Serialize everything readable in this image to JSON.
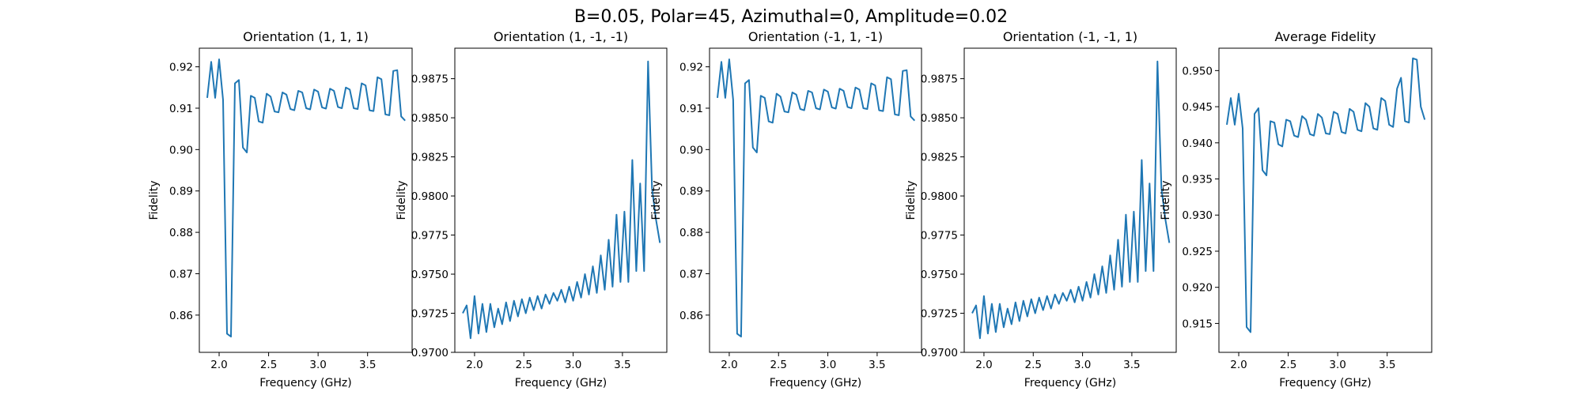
{
  "figure": {
    "title": "B=0.05, Polar=45, Azimuthal=0, Amplitude=0.02"
  },
  "chart_data": [
    {
      "type": "line",
      "title": "Orientation (1, 1, 1)",
      "xlabel": "Frequency (GHz)",
      "ylabel": "Fidelity",
      "xlim": [
        1.8,
        3.95
      ],
      "ylim": [
        0.851,
        0.9245
      ],
      "xticks": [
        2.0,
        2.5,
        3.0,
        3.5
      ],
      "yticks": [
        0.86,
        0.87,
        0.88,
        0.89,
        0.9,
        0.91,
        0.92
      ],
      "xtick_labels": [
        "2.0",
        "2.5",
        "3.0",
        "3.5"
      ],
      "ytick_labels": [
        "0.86",
        "0.87",
        "0.88",
        "0.89",
        "0.90",
        "0.91",
        "0.92"
      ],
      "color": "#1f77b4",
      "series": [
        {
          "x": [
            1.88,
            1.92,
            1.96,
            2.0,
            2.04,
            2.08,
            2.12,
            2.16,
            2.2,
            2.24,
            2.28,
            2.32,
            2.36,
            2.4,
            2.44,
            2.48,
            2.52,
            2.56,
            2.6,
            2.64,
            2.68,
            2.72,
            2.76,
            2.8,
            2.84,
            2.88,
            2.92,
            2.96,
            3.0,
            3.04,
            3.08,
            3.12,
            3.16,
            3.2,
            3.24,
            3.28,
            3.32,
            3.36,
            3.4,
            3.44,
            3.48,
            3.52,
            3.56,
            3.6,
            3.64,
            3.68,
            3.72,
            3.76,
            3.8,
            3.84,
            3.88
          ],
          "values": [
            0.9125,
            0.9212,
            0.9125,
            0.9218,
            0.912,
            0.8555,
            0.8548,
            0.916,
            0.9168,
            0.9005,
            0.8993,
            0.913,
            0.9125,
            0.9068,
            0.9065,
            0.9135,
            0.9128,
            0.9092,
            0.909,
            0.9138,
            0.9133,
            0.9098,
            0.9095,
            0.9142,
            0.9138,
            0.91,
            0.9097,
            0.9145,
            0.914,
            0.9102,
            0.9099,
            0.9147,
            0.9142,
            0.9103,
            0.91,
            0.915,
            0.9145,
            0.91,
            0.9098,
            0.916,
            0.9155,
            0.9095,
            0.9093,
            0.9175,
            0.917,
            0.9085,
            0.9083,
            0.919,
            0.9192,
            0.908,
            0.907
          ]
        }
      ]
    },
    {
      "type": "line",
      "title": "Orientation (1, -1, -1)",
      "xlabel": "Frequency (GHz)",
      "ylabel": "Fidelity",
      "xlim": [
        1.8,
        3.95
      ],
      "ylim": [
        0.97,
        0.98945
      ],
      "xticks": [
        2.0,
        2.5,
        3.0,
        3.5
      ],
      "yticks": [
        0.97,
        0.9725,
        0.975,
        0.9775,
        0.98,
        0.9825,
        0.985,
        0.9875
      ],
      "xtick_labels": [
        "2.0",
        "2.5",
        "3.0",
        "3.5"
      ],
      "ytick_labels": [
        "0.9700",
        "0.9725",
        "0.9750",
        "0.9775",
        "0.9800",
        "0.9825",
        "0.9850",
        "0.9875"
      ],
      "color": "#1f77b4",
      "series": [
        {
          "x": [
            1.88,
            1.92,
            1.96,
            2.0,
            2.04,
            2.08,
            2.12,
            2.16,
            2.2,
            2.24,
            2.28,
            2.32,
            2.36,
            2.4,
            2.44,
            2.48,
            2.52,
            2.56,
            2.6,
            2.64,
            2.68,
            2.72,
            2.76,
            2.8,
            2.84,
            2.88,
            2.92,
            2.96,
            3.0,
            3.04,
            3.08,
            3.12,
            3.16,
            3.2,
            3.24,
            3.28,
            3.32,
            3.36,
            3.4,
            3.44,
            3.48,
            3.52,
            3.56,
            3.6,
            3.64,
            3.68,
            3.72,
            3.76,
            3.8,
            3.84,
            3.88
          ],
          "values": [
            0.9725,
            0.973,
            0.9709,
            0.9736,
            0.9712,
            0.9731,
            0.9713,
            0.9731,
            0.9716,
            0.9728,
            0.9718,
            0.9732,
            0.972,
            0.9733,
            0.9723,
            0.9734,
            0.9725,
            0.9735,
            0.9727,
            0.9736,
            0.9728,
            0.9737,
            0.9731,
            0.9738,
            0.9733,
            0.974,
            0.9732,
            0.9742,
            0.9733,
            0.9745,
            0.9735,
            0.975,
            0.9737,
            0.9755,
            0.9738,
            0.9762,
            0.974,
            0.9772,
            0.9742,
            0.9788,
            0.9745,
            0.979,
            0.9745,
            0.9823,
            0.9752,
            0.9808,
            0.9752,
            0.9886,
            0.9805,
            0.9785,
            0.977
          ]
        }
      ]
    },
    {
      "type": "line",
      "title": "Orientation (-1, 1, -1)",
      "xlabel": "Frequency (GHz)",
      "ylabel": "Fidelity",
      "xlim": [
        1.8,
        3.95
      ],
      "ylim": [
        0.851,
        0.9245
      ],
      "xticks": [
        2.0,
        2.5,
        3.0,
        3.5
      ],
      "yticks": [
        0.86,
        0.87,
        0.88,
        0.89,
        0.9,
        0.91,
        0.92
      ],
      "xtick_labels": [
        "2.0",
        "2.5",
        "3.0",
        "3.5"
      ],
      "ytick_labels": [
        "0.86",
        "0.87",
        "0.88",
        "0.89",
        "0.90",
        "0.91",
        "0.92"
      ],
      "color": "#1f77b4",
      "series": [
        {
          "x": [
            1.88,
            1.92,
            1.96,
            2.0,
            2.04,
            2.08,
            2.12,
            2.16,
            2.2,
            2.24,
            2.28,
            2.32,
            2.36,
            2.4,
            2.44,
            2.48,
            2.52,
            2.56,
            2.6,
            2.64,
            2.68,
            2.72,
            2.76,
            2.8,
            2.84,
            2.88,
            2.92,
            2.96,
            3.0,
            3.04,
            3.08,
            3.12,
            3.16,
            3.2,
            3.24,
            3.28,
            3.32,
            3.36,
            3.4,
            3.44,
            3.48,
            3.52,
            3.56,
            3.6,
            3.64,
            3.68,
            3.72,
            3.76,
            3.8,
            3.84,
            3.88
          ],
          "values": [
            0.9125,
            0.9212,
            0.9125,
            0.9218,
            0.912,
            0.8555,
            0.8548,
            0.916,
            0.9168,
            0.9005,
            0.8993,
            0.913,
            0.9125,
            0.9068,
            0.9065,
            0.9135,
            0.9128,
            0.9092,
            0.909,
            0.9138,
            0.9133,
            0.9098,
            0.9095,
            0.9142,
            0.9138,
            0.91,
            0.9097,
            0.9145,
            0.914,
            0.9102,
            0.9099,
            0.9147,
            0.9142,
            0.9103,
            0.91,
            0.915,
            0.9145,
            0.91,
            0.9098,
            0.916,
            0.9155,
            0.9095,
            0.9093,
            0.9175,
            0.917,
            0.9085,
            0.9083,
            0.919,
            0.9192,
            0.908,
            0.907
          ]
        }
      ]
    },
    {
      "type": "line",
      "title": "Orientation (-1, -1, 1)",
      "xlabel": "Frequency (GHz)",
      "ylabel": "Fidelity",
      "xlim": [
        1.8,
        3.95
      ],
      "ylim": [
        0.97,
        0.98945
      ],
      "xticks": [
        2.0,
        2.5,
        3.0,
        3.5
      ],
      "yticks": [
        0.97,
        0.9725,
        0.975,
        0.9775,
        0.98,
        0.9825,
        0.985,
        0.9875
      ],
      "xtick_labels": [
        "2.0",
        "2.5",
        "3.0",
        "3.5"
      ],
      "ytick_labels": [
        "0.9700",
        "0.9725",
        "0.9750",
        "0.9775",
        "0.9800",
        "0.9825",
        "0.9850",
        "0.9875"
      ],
      "color": "#1f77b4",
      "series": [
        {
          "x": [
            1.88,
            1.92,
            1.96,
            2.0,
            2.04,
            2.08,
            2.12,
            2.16,
            2.2,
            2.24,
            2.28,
            2.32,
            2.36,
            2.4,
            2.44,
            2.48,
            2.52,
            2.56,
            2.6,
            2.64,
            2.68,
            2.72,
            2.76,
            2.8,
            2.84,
            2.88,
            2.92,
            2.96,
            3.0,
            3.04,
            3.08,
            3.12,
            3.16,
            3.2,
            3.24,
            3.28,
            3.32,
            3.36,
            3.4,
            3.44,
            3.48,
            3.52,
            3.56,
            3.6,
            3.64,
            3.68,
            3.72,
            3.76,
            3.8,
            3.84,
            3.88
          ],
          "values": [
            0.9725,
            0.973,
            0.9709,
            0.9736,
            0.9712,
            0.9731,
            0.9713,
            0.9731,
            0.9716,
            0.9728,
            0.9718,
            0.9732,
            0.972,
            0.9733,
            0.9723,
            0.9734,
            0.9725,
            0.9735,
            0.9727,
            0.9736,
            0.9728,
            0.9737,
            0.9731,
            0.9738,
            0.9733,
            0.974,
            0.9732,
            0.9742,
            0.9733,
            0.9745,
            0.9735,
            0.975,
            0.9737,
            0.9755,
            0.9738,
            0.9762,
            0.974,
            0.9772,
            0.9742,
            0.9788,
            0.9745,
            0.979,
            0.9745,
            0.9823,
            0.9752,
            0.9808,
            0.9752,
            0.9886,
            0.9805,
            0.9785,
            0.977
          ]
        }
      ]
    },
    {
      "type": "line",
      "title": "Average Fidelity",
      "xlabel": "Frequency (GHz)",
      "ylabel": "Fidelity",
      "xlim": [
        1.8,
        3.95
      ],
      "ylim": [
        0.911,
        0.9531
      ],
      "xticks": [
        2.0,
        2.5,
        3.0,
        3.5
      ],
      "yticks": [
        0.915,
        0.92,
        0.925,
        0.93,
        0.935,
        0.94,
        0.945,
        0.95
      ],
      "xtick_labels": [
        "2.0",
        "2.5",
        "3.0",
        "3.5"
      ],
      "ytick_labels": [
        "0.915",
        "0.920",
        "0.925",
        "0.930",
        "0.935",
        "0.940",
        "0.945",
        "0.950"
      ],
      "color": "#1f77b4",
      "series": [
        {
          "x": [
            1.88,
            1.92,
            1.96,
            2.0,
            2.04,
            2.08,
            2.12,
            2.16,
            2.2,
            2.24,
            2.28,
            2.32,
            2.36,
            2.4,
            2.44,
            2.48,
            2.52,
            2.56,
            2.6,
            2.64,
            2.68,
            2.72,
            2.76,
            2.8,
            2.84,
            2.88,
            2.92,
            2.96,
            3.0,
            3.04,
            3.08,
            3.12,
            3.16,
            3.2,
            3.24,
            3.28,
            3.32,
            3.36,
            3.4,
            3.44,
            3.48,
            3.52,
            3.56,
            3.6,
            3.64,
            3.68,
            3.72,
            3.76,
            3.8,
            3.84,
            3.88
          ],
          "values": [
            0.9425,
            0.9462,
            0.9425,
            0.9468,
            0.942,
            0.9145,
            0.9138,
            0.944,
            0.9448,
            0.9362,
            0.9355,
            0.943,
            0.9428,
            0.9398,
            0.9395,
            0.9432,
            0.943,
            0.941,
            0.9408,
            0.9437,
            0.9432,
            0.9412,
            0.941,
            0.944,
            0.9435,
            0.9413,
            0.9412,
            0.9443,
            0.944,
            0.9415,
            0.9413,
            0.9447,
            0.9443,
            0.9418,
            0.9416,
            0.9455,
            0.945,
            0.942,
            0.9418,
            0.9462,
            0.9458,
            0.9425,
            0.9422,
            0.9475,
            0.949,
            0.943,
            0.9428,
            0.9517,
            0.9515,
            0.945,
            0.9432
          ]
        }
      ]
    }
  ]
}
